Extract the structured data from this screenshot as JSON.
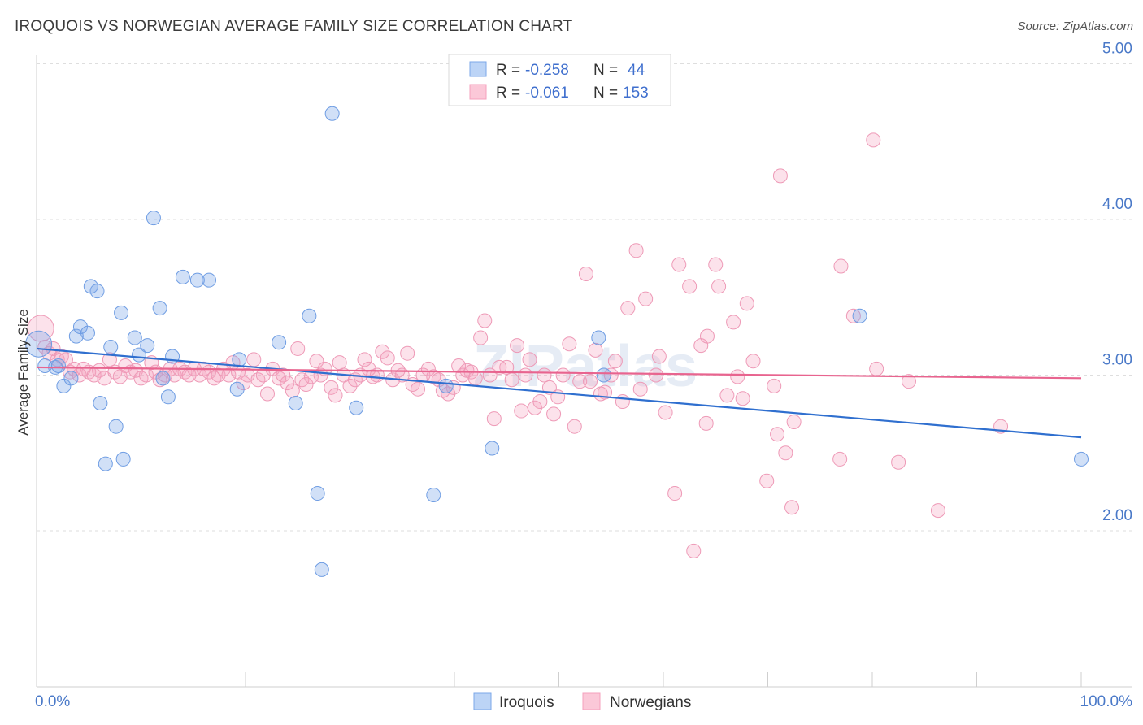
{
  "title": "IROQUOIS VS NORWEGIAN AVERAGE FAMILY SIZE CORRELATION CHART",
  "source": "Source: ZipAtlas.com",
  "watermark": "ZIPatlas",
  "colors": {
    "iroquois": "#7ba7e8",
    "iroquois_line": "#2f6fcf",
    "norwegians": "#f4a0bd",
    "norwegians_line": "#e8648f",
    "tick": "#4a79c8"
  },
  "legend": {
    "rows": [
      {
        "r_label": "R = ",
        "r_value": "-0.258",
        "n_label": "N = ",
        "n_value": "44"
      },
      {
        "r_label": "R = ",
        "r_value": "-0.061",
        "n_label": "N = ",
        "n_value": "153"
      }
    ]
  },
  "chart_data": {
    "type": "scatter",
    "xlabel": "",
    "ylabel": "Average Family Size",
    "xlim": [
      0,
      100
    ],
    "ylim": [
      1.0,
      5.15
    ],
    "x_tick_labels": [
      "0.0%",
      "100.0%"
    ],
    "y_ticks": [
      2.0,
      3.0,
      4.0,
      5.0
    ],
    "y_tick_labels": [
      "2.00",
      "3.00",
      "4.00",
      "5.00"
    ],
    "grid": true,
    "legend_position": "bottom",
    "series": [
      {
        "name": "Iroquois",
        "trend": {
          "x": [
            0,
            100
          ],
          "y": [
            3.17,
            2.6
          ]
        },
        "points": [
          [
            0.2,
            3.2
          ],
          [
            0.8,
            3.06
          ],
          [
            1.8,
            3.05
          ],
          [
            2.1,
            3.06
          ],
          [
            2.6,
            2.93
          ],
          [
            3.3,
            2.98
          ],
          [
            3.8,
            3.25
          ],
          [
            4.2,
            3.31
          ],
          [
            4.9,
            3.27
          ],
          [
            5.2,
            3.57
          ],
          [
            5.8,
            3.54
          ],
          [
            6.1,
            2.82
          ],
          [
            6.6,
            2.43
          ],
          [
            7.1,
            3.18
          ],
          [
            7.6,
            2.67
          ],
          [
            8.1,
            3.4
          ],
          [
            8.3,
            2.46
          ],
          [
            9.4,
            3.24
          ],
          [
            9.8,
            3.13
          ],
          [
            10.6,
            3.19
          ],
          [
            11.2,
            4.01
          ],
          [
            11.8,
            3.43
          ],
          [
            12.1,
            2.98
          ],
          [
            12.6,
            2.86
          ],
          [
            13.0,
            3.12
          ],
          [
            14.0,
            3.63
          ],
          [
            15.4,
            3.61
          ],
          [
            16.5,
            3.61
          ],
          [
            19.2,
            2.91
          ],
          [
            19.4,
            3.1
          ],
          [
            23.2,
            3.21
          ],
          [
            24.8,
            2.82
          ],
          [
            26.1,
            3.38
          ],
          [
            26.9,
            2.24
          ],
          [
            27.3,
            1.75
          ],
          [
            28.3,
            4.68
          ],
          [
            30.6,
            2.79
          ],
          [
            38.0,
            2.23
          ],
          [
            39.2,
            2.93
          ],
          [
            43.6,
            2.53
          ],
          [
            53.8,
            3.24
          ],
          [
            54.3,
            3.0
          ],
          [
            78.8,
            3.38
          ],
          [
            100.0,
            2.46
          ]
        ]
      },
      {
        "name": "Norwegians",
        "trend": {
          "x": [
            0,
            100
          ],
          "y": [
            3.05,
            2.98
          ]
        },
        "points": [
          [
            0.4,
            3.3
          ],
          [
            0.8,
            3.18
          ],
          [
            1.2,
            3.14
          ],
          [
            1.6,
            3.17
          ],
          [
            2.0,
            3.1
          ],
          [
            2.4,
            3.12
          ],
          [
            2.8,
            3.1
          ],
          [
            3.2,
            3.02
          ],
          [
            3.6,
            3.04
          ],
          [
            4.1,
            3.0
          ],
          [
            4.5,
            3.04
          ],
          [
            5.0,
            3.02
          ],
          [
            5.5,
            3.0
          ],
          [
            6.0,
            3.03
          ],
          [
            6.5,
            2.98
          ],
          [
            7.0,
            3.1
          ],
          [
            7.5,
            3.02
          ],
          [
            8.0,
            2.99
          ],
          [
            8.5,
            3.06
          ],
          [
            9.0,
            3.02
          ],
          [
            9.5,
            3.03
          ],
          [
            10.0,
            2.98
          ],
          [
            10.5,
            3.0
          ],
          [
            11.0,
            3.08
          ],
          [
            11.4,
            3.02
          ],
          [
            11.8,
            2.97
          ],
          [
            12.3,
            3.0
          ],
          [
            12.8,
            3.04
          ],
          [
            13.2,
            3.0
          ],
          [
            13.7,
            3.04
          ],
          [
            14.2,
            3.02
          ],
          [
            14.6,
            3.0
          ],
          [
            15.1,
            3.04
          ],
          [
            15.6,
            3.0
          ],
          [
            16.0,
            3.04
          ],
          [
            16.5,
            3.02
          ],
          [
            17.0,
            2.98
          ],
          [
            17.4,
            3.0
          ],
          [
            17.9,
            3.04
          ],
          [
            18.4,
            3.0
          ],
          [
            18.8,
            3.08
          ],
          [
            19.3,
            3.02
          ],
          [
            19.8,
            2.95
          ],
          [
            20.2,
            3.0
          ],
          [
            20.8,
            3.1
          ],
          [
            21.2,
            2.97
          ],
          [
            21.7,
            3.0
          ],
          [
            22.1,
            2.88
          ],
          [
            22.6,
            3.04
          ],
          [
            23.2,
            2.98
          ],
          [
            23.6,
            3.0
          ],
          [
            24.0,
            2.95
          ],
          [
            24.5,
            2.9
          ],
          [
            25.0,
            3.17
          ],
          [
            25.4,
            2.97
          ],
          [
            25.8,
            2.94
          ],
          [
            26.3,
            2.99
          ],
          [
            26.8,
            3.09
          ],
          [
            27.2,
            3.0
          ],
          [
            27.6,
            3.04
          ],
          [
            28.2,
            2.92
          ],
          [
            28.6,
            2.87
          ],
          [
            29.0,
            3.08
          ],
          [
            29.4,
            3.0
          ],
          [
            30.0,
            2.93
          ],
          [
            30.5,
            2.97
          ],
          [
            31.0,
            3.0
          ],
          [
            31.4,
            3.1
          ],
          [
            31.8,
            3.04
          ],
          [
            32.2,
            2.99
          ],
          [
            32.6,
            3.0
          ],
          [
            33.1,
            3.15
          ],
          [
            33.6,
            3.11
          ],
          [
            34.1,
            2.97
          ],
          [
            34.6,
            3.03
          ],
          [
            35.0,
            3.0
          ],
          [
            35.5,
            3.14
          ],
          [
            36.0,
            2.94
          ],
          [
            36.5,
            2.91
          ],
          [
            37.0,
            3.0
          ],
          [
            37.5,
            3.04
          ],
          [
            38.0,
            2.99
          ],
          [
            38.5,
            2.97
          ],
          [
            38.9,
            2.9
          ],
          [
            39.4,
            2.88
          ],
          [
            39.9,
            2.92
          ],
          [
            40.4,
            3.06
          ],
          [
            40.8,
            3.0
          ],
          [
            41.2,
            3.03
          ],
          [
            41.6,
            3.02
          ],
          [
            42.0,
            2.98
          ],
          [
            42.5,
            3.24
          ],
          [
            42.9,
            3.35
          ],
          [
            43.4,
            3.0
          ],
          [
            43.8,
            2.72
          ],
          [
            44.3,
            3.05
          ],
          [
            45.0,
            3.05
          ],
          [
            45.5,
            2.97
          ],
          [
            46.0,
            3.19
          ],
          [
            46.4,
            2.77
          ],
          [
            46.8,
            3.0
          ],
          [
            47.2,
            3.1
          ],
          [
            47.7,
            2.79
          ],
          [
            48.2,
            2.83
          ],
          [
            48.6,
            3.0
          ],
          [
            49.1,
            2.92
          ],
          [
            49.5,
            2.75
          ],
          [
            49.9,
            2.86
          ],
          [
            50.4,
            3.0
          ],
          [
            51.0,
            3.2
          ],
          [
            51.5,
            2.67
          ],
          [
            52.0,
            2.96
          ],
          [
            52.6,
            3.65
          ],
          [
            53.0,
            2.96
          ],
          [
            53.5,
            3.16
          ],
          [
            54.0,
            2.88
          ],
          [
            54.4,
            2.89
          ],
          [
            55.0,
            3.0
          ],
          [
            55.4,
            3.09
          ],
          [
            56.1,
            2.83
          ],
          [
            56.6,
            3.43
          ],
          [
            57.4,
            3.8
          ],
          [
            57.8,
            2.91
          ],
          [
            58.3,
            3.49
          ],
          [
            59.3,
            3.0
          ],
          [
            59.6,
            3.12
          ],
          [
            60.2,
            2.76
          ],
          [
            61.1,
            2.24
          ],
          [
            61.5,
            3.71
          ],
          [
            62.5,
            3.57
          ],
          [
            62.9,
            1.87
          ],
          [
            63.6,
            3.19
          ],
          [
            64.1,
            2.69
          ],
          [
            64.2,
            3.25
          ],
          [
            65.0,
            3.71
          ],
          [
            65.3,
            3.57
          ],
          [
            66.1,
            2.87
          ],
          [
            66.7,
            3.34
          ],
          [
            67.1,
            2.99
          ],
          [
            67.6,
            2.85
          ],
          [
            68.0,
            3.46
          ],
          [
            68.6,
            3.09
          ],
          [
            69.9,
            2.32
          ],
          [
            70.6,
            2.93
          ],
          [
            70.9,
            2.62
          ],
          [
            71.2,
            4.28
          ],
          [
            71.7,
            2.5
          ],
          [
            72.3,
            2.15
          ],
          [
            72.5,
            2.7
          ],
          [
            76.9,
            2.46
          ],
          [
            77.0,
            3.7
          ],
          [
            78.2,
            3.38
          ],
          [
            80.1,
            4.51
          ],
          [
            80.4,
            3.04
          ],
          [
            82.5,
            2.44
          ],
          [
            83.5,
            2.96
          ],
          [
            86.3,
            2.13
          ],
          [
            92.3,
            2.67
          ]
        ]
      }
    ]
  }
}
